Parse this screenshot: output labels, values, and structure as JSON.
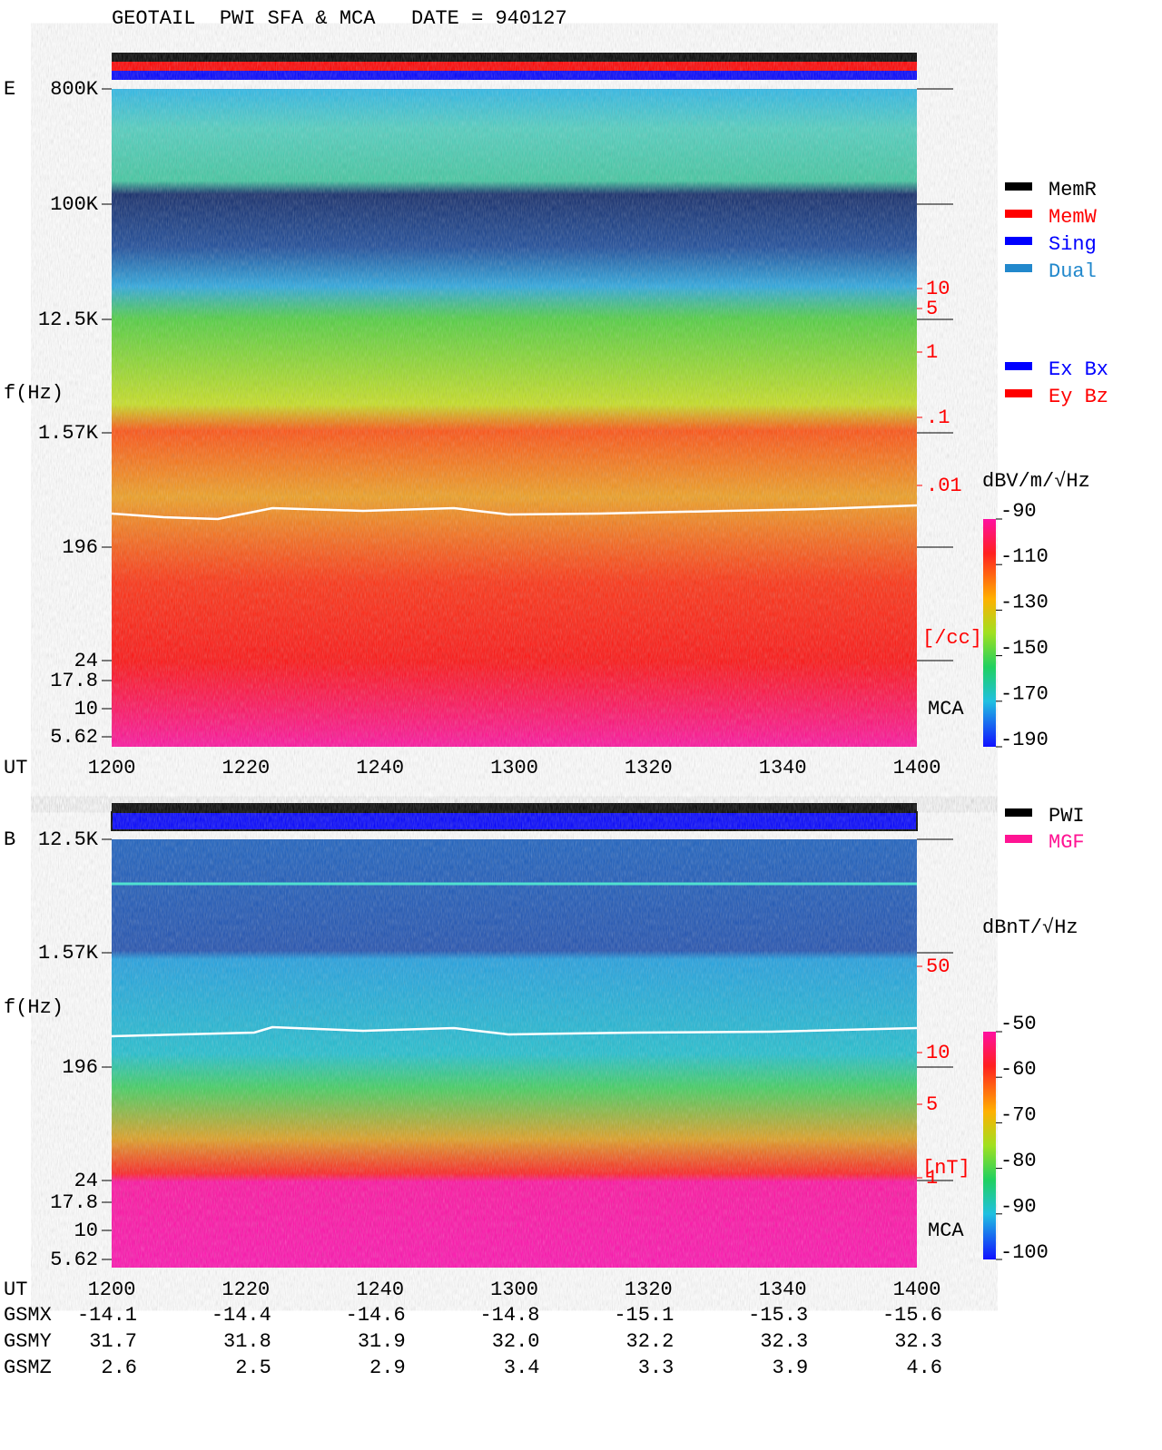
{
  "title": "GEOTAIL  PWI SFA & MCA   DATE = 940127",
  "panels": [
    {
      "label": "E",
      "y_axis_label": "f(Hz)",
      "y_ticks": [
        "800K",
        "100K",
        "12.5K",
        "1.57K",
        "196",
        "24",
        "17.8",
        "10",
        "5.62"
      ],
      "density_scale": [
        "10",
        "5",
        "1",
        ".1",
        ".01"
      ],
      "density_unit": "[/cc]",
      "mca_label": "MCA",
      "x_axis_label": "UT",
      "x_ticks": [
        1200,
        1220,
        1240,
        1300,
        1320,
        1340,
        1400
      ],
      "colorbar_unit": "dBV/m/√Hz",
      "colorbar_ticks": [
        -90,
        -110,
        -130,
        -150,
        -170,
        -190
      ]
    },
    {
      "label": "B",
      "y_axis_label": "f(Hz)",
      "y_ticks": [
        "12.5K",
        "1.57K",
        "196",
        "24",
        "17.8",
        "10",
        "5.62"
      ],
      "density_scale": [
        "50",
        "10",
        "5",
        "1"
      ],
      "density_unit": "[nT]",
      "mca_label": "MCA",
      "x_axis_label": "UT",
      "x_ticks": [
        1200,
        1220,
        1240,
        1300,
        1320,
        1340,
        1400
      ],
      "colorbar_unit": "dBnT/√Hz",
      "colorbar_ticks": [
        -50,
        -60,
        -70,
        -80,
        -90,
        -100
      ]
    }
  ],
  "legend_mode": [
    {
      "name": "MemR",
      "color": "#000000"
    },
    {
      "name": "MemW",
      "color": "#ff0000"
    },
    {
      "name": "Sing",
      "color": "#0000ff"
    },
    {
      "name": "Dual",
      "color": "#2288cc"
    }
  ],
  "legend_axis": [
    {
      "name": "Ex Bx",
      "color": "#0000ff"
    },
    {
      "name": "Ey Bz",
      "color": "#ff0000"
    }
  ],
  "legend_source": [
    {
      "name": "PWI",
      "color": "#000000"
    },
    {
      "name": "MGF",
      "color": "#ff1493"
    }
  ],
  "orbit": [
    {
      "label": "GSMX",
      "values": [
        -14.1,
        -14.4,
        -14.6,
        -14.8,
        -15.1,
        -15.3,
        -15.6
      ]
    },
    {
      "label": "GSMY",
      "values": [
        31.7,
        31.8,
        31.9,
        {
          "value": 32,
          "label": "32.0"
        },
        32.2,
        32.3,
        32.3
      ]
    },
    {
      "label": "GSMZ",
      "values": [
        2.6,
        2.5,
        2.9,
        3.4,
        3.3,
        3.9,
        4.6
      ]
    }
  ]
}
